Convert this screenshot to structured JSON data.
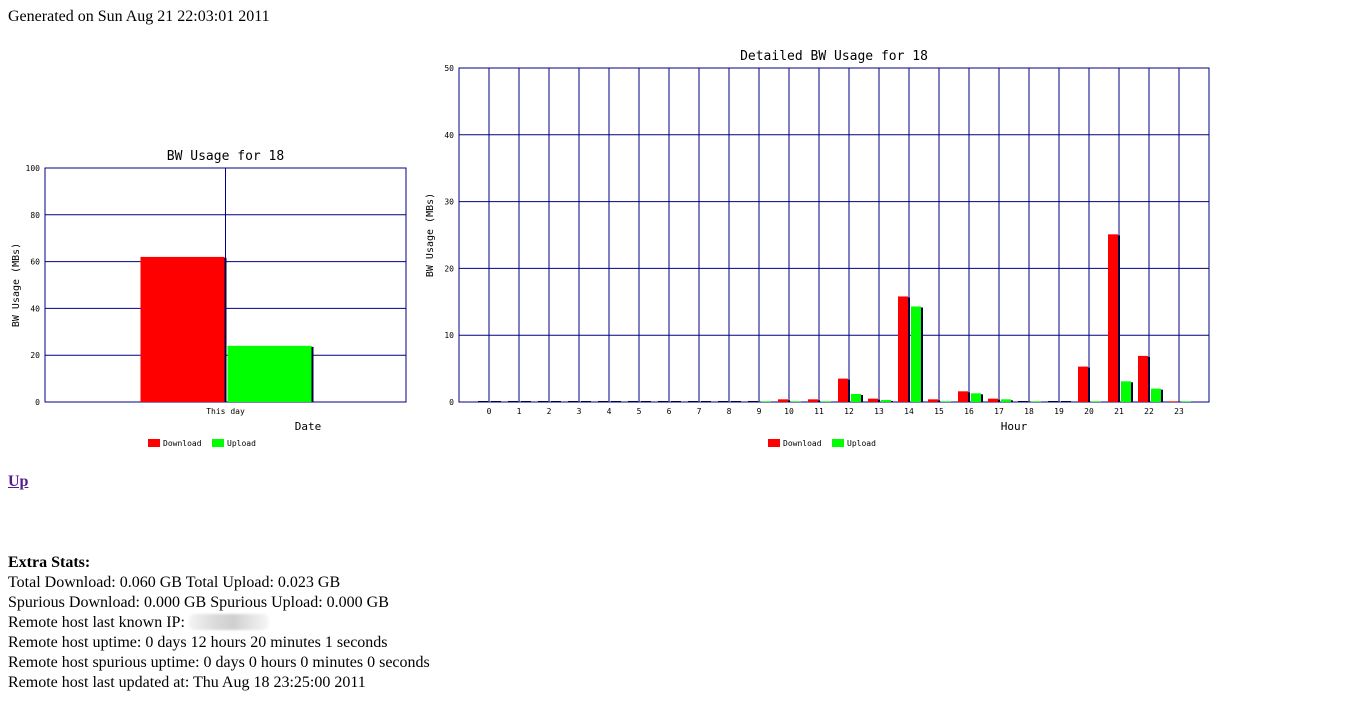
{
  "header": {
    "generated": "Generated on Sun Aug 21 22:03:01 2011"
  },
  "colors": {
    "download": "#ff0000",
    "upload": "#00ff00",
    "grid": "#000080",
    "shadow": "#000040"
  },
  "chart_data": [
    {
      "type": "bar",
      "title": "BW Usage for 18",
      "xlabel": "Date",
      "ylabel": "BW Usage (MBs)",
      "ylim": [
        0,
        100
      ],
      "yticks": [
        "0",
        "20",
        "40",
        "60",
        "80",
        "100"
      ],
      "categories": [
        "This day"
      ],
      "series": [
        {
          "name": "Download",
          "values": [
            62
          ]
        },
        {
          "name": "Upload",
          "values": [
            24
          ]
        }
      ],
      "legend": "bottom",
      "grid": true
    },
    {
      "type": "bar",
      "title": "Detailed BW Usage for 18",
      "xlabel": "Hour",
      "ylabel": "BW Usage (MBs)",
      "ylim": [
        0,
        50
      ],
      "yticks": [
        "0",
        "10",
        "20",
        "30",
        "40",
        "50"
      ],
      "categories": [
        "0",
        "1",
        "2",
        "3",
        "4",
        "5",
        "6",
        "7",
        "8",
        "9",
        "10",
        "11",
        "12",
        "13",
        "14",
        "15",
        "16",
        "17",
        "18",
        "19",
        "20",
        "21",
        "22",
        "23"
      ],
      "series": [
        {
          "name": "Download",
          "values": [
            0,
            0,
            0,
            0,
            0,
            0,
            0,
            0,
            0,
            0,
            0.4,
            0.4,
            3.5,
            0.5,
            15.8,
            0.4,
            1.6,
            0.5,
            0,
            0,
            5.3,
            25.1,
            6.9,
            0.1
          ]
        },
        {
          "name": "Upload",
          "values": [
            0,
            0,
            0,
            0,
            0,
            0,
            0,
            0,
            0,
            0.1,
            0.1,
            0.1,
            1.2,
            0.3,
            14.3,
            0.1,
            1.3,
            0.4,
            0.1,
            0,
            0.1,
            3.1,
            2.0,
            0.1
          ]
        }
      ],
      "legend": "bottom",
      "grid": true
    }
  ],
  "nav": {
    "up_label": "Up"
  },
  "extra": {
    "heading": "Extra Stats:",
    "line1": "Total Download: 0.060 GB Total Upload: 0.023 GB",
    "line2": "Spurious Download: 0.000 GB Spurious Upload: 0.000 GB",
    "line3": "Remote host last known IP:",
    "line4": "Remote host uptime: 0 days 12 hours 20 minutes 1 seconds",
    "line5": "Remote host spurious uptime: 0 days 0 hours 0 minutes 0 seconds",
    "line6": "Remote host last updated at: Thu Aug 18 23:25:00 2011"
  }
}
